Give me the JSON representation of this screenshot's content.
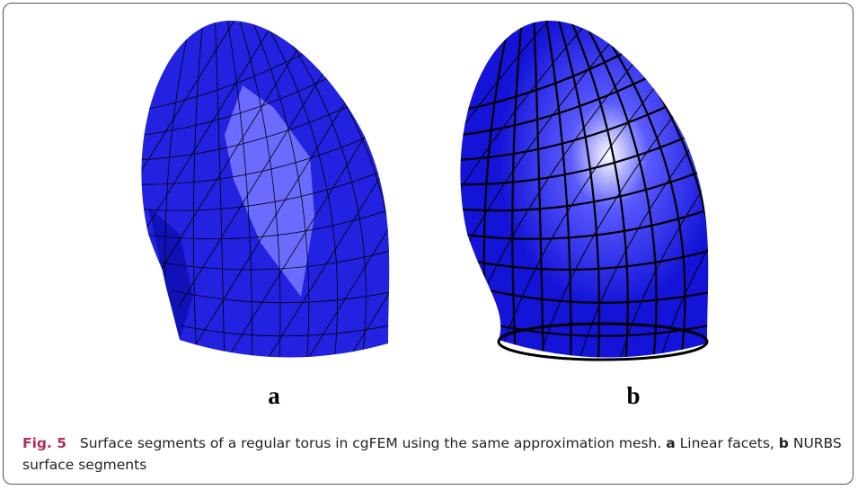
{
  "figure": {
    "panels": [
      {
        "label": "a"
      },
      {
        "label": "b"
      }
    ],
    "caption": {
      "label": "Fig. 5",
      "text": "Surface segments of a regular torus in cgFEM using the same approximation mesh.",
      "parts": [
        {
          "label": "a",
          "text": "Linear facets,"
        },
        {
          "label": "b",
          "text": "NURBS surface segments"
        }
      ]
    }
  }
}
